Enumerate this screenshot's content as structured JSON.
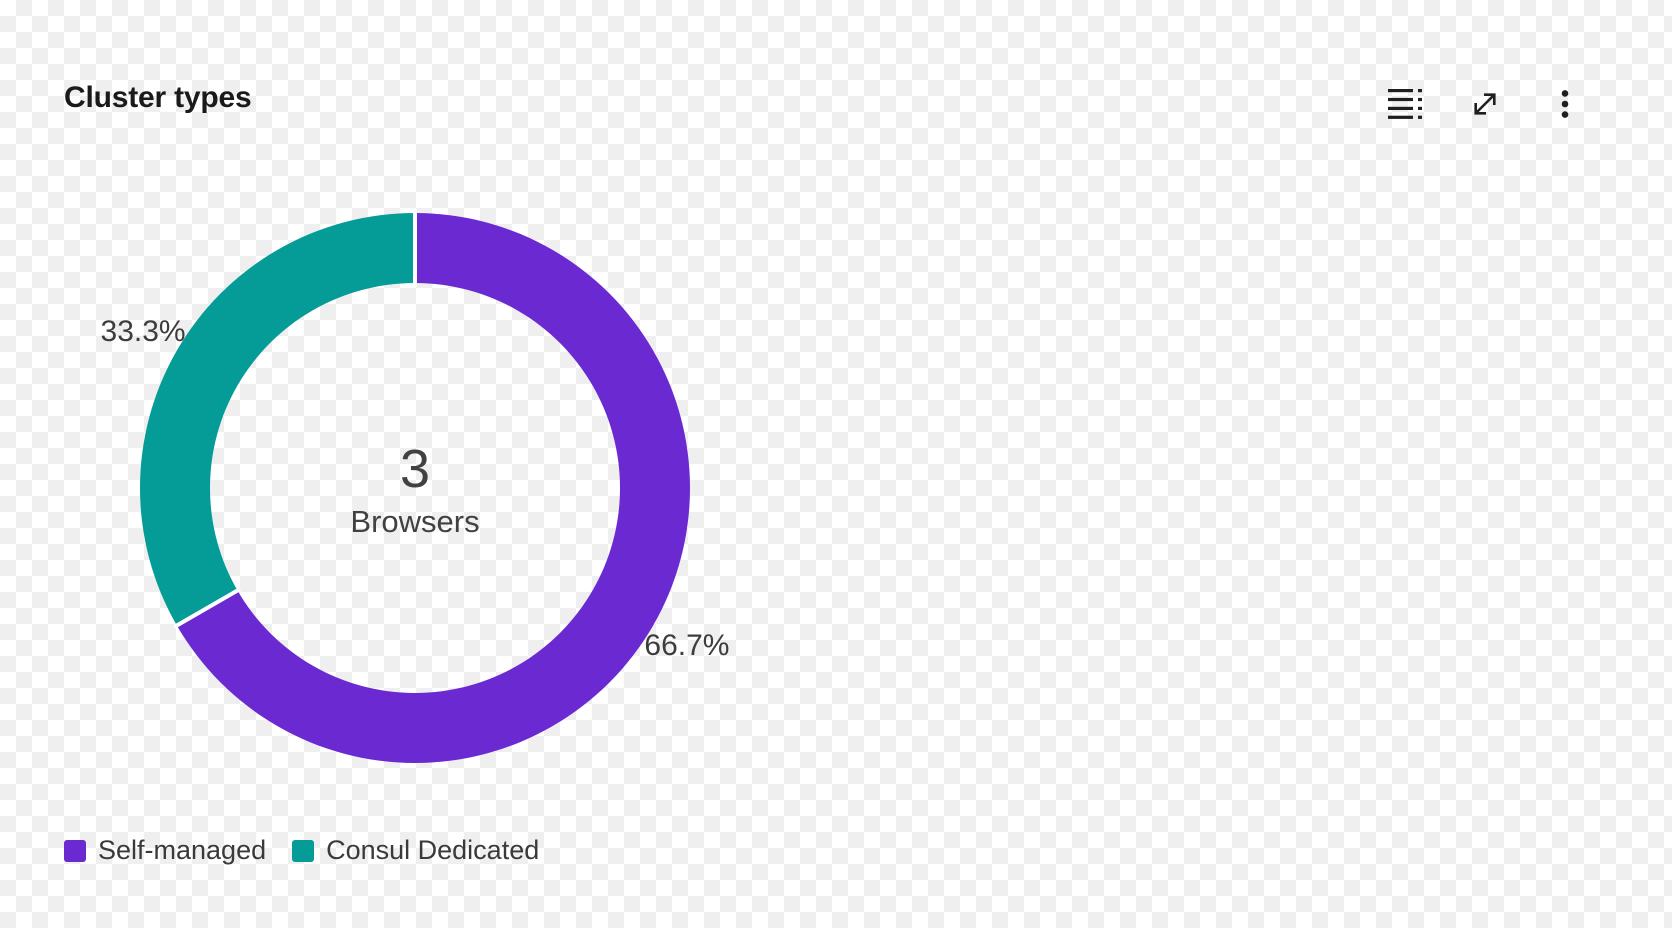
{
  "panel": {
    "title": "Cluster types"
  },
  "toolbar": {
    "buttons": [
      {
        "name": "data-table",
        "icon": "data-table-icon"
      },
      {
        "name": "expand",
        "icon": "expand-icon"
      },
      {
        "name": "more-options",
        "icon": "kebab-menu-icon"
      }
    ]
  },
  "chart_data": {
    "type": "pie",
    "subtype": "donut",
    "title": "Cluster types",
    "center_value": "3",
    "center_label": "Browsers",
    "start_angle_deg": -90,
    "direction": "clockwise",
    "legend_position": "bottom-left",
    "slices": [
      {
        "label": "Self-managed",
        "value": 2,
        "percent": 66.7,
        "percent_label": "66.7%",
        "color": "#6b2ad1"
      },
      {
        "label": "Consul Dedicated",
        "value": 1,
        "percent": 33.3,
        "percent_label": "33.3%",
        "color": "#059c98"
      }
    ]
  },
  "colors": {
    "separator": "#ffffff",
    "slice_label_text": "#3d3d3d",
    "center_text": "#414141",
    "title_text": "#1a1a1a",
    "icon": "#1f1f1f"
  }
}
